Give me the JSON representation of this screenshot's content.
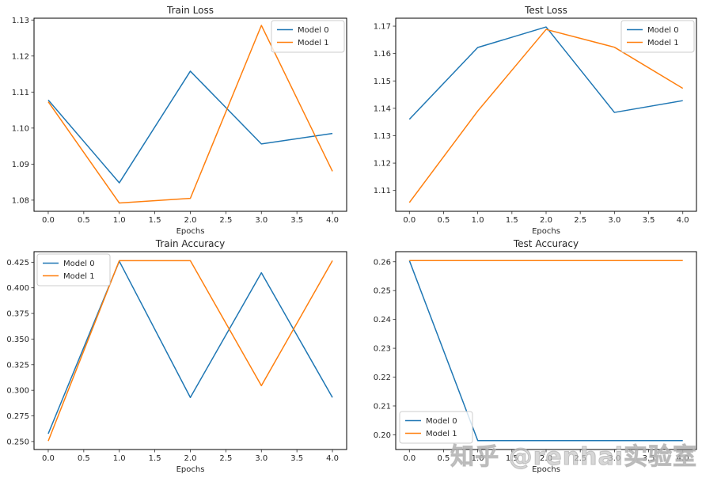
{
  "watermark": {
    "text": "知乎 @renhai实验室"
  },
  "colors": {
    "model0": "#1f77b4",
    "model1": "#ff7f0e",
    "axis": "#262626",
    "spine": "#000000",
    "legend_border": "#cccccc",
    "legend_bg": "#ffffff",
    "background": "#ffffff",
    "watermark": "#c8c8c8"
  },
  "chart_data": [
    {
      "id": "train-loss",
      "type": "line",
      "title": "Train Loss",
      "xlabel": "Epochs",
      "ylabel": "",
      "grid": false,
      "x": [
        0,
        1,
        2,
        3,
        4
      ],
      "series": [
        {
          "name": "Model 0",
          "color": "model0",
          "values": [
            1.1078,
            1.0848,
            1.1158,
            1.0956,
            1.0985
          ]
        },
        {
          "name": "Model 1",
          "color": "model1",
          "values": [
            1.1073,
            1.0792,
            1.0805,
            1.1285,
            1.088
          ]
        }
      ],
      "xlim": [
        -0.2,
        4.2
      ],
      "ylim": [
        1.0769,
        1.1305
      ],
      "xtick_values": [
        0,
        0.5,
        1,
        1.5,
        2,
        2.5,
        3,
        3.5,
        4
      ],
      "xtick_labels": [
        "0.0",
        "0.5",
        "1.0",
        "1.5",
        "2.0",
        "2.5",
        "3.0",
        "3.5",
        "4.0"
      ],
      "ytick_values": [
        1.08,
        1.09,
        1.1,
        1.11,
        1.12,
        1.13
      ],
      "ytick_labels": [
        "1.08",
        "1.09",
        "1.10",
        "1.11",
        "1.12",
        "1.13"
      ],
      "legend_position": "top-right",
      "legend_labels": [
        "Model 0",
        "Model 1"
      ]
    },
    {
      "id": "test-loss",
      "type": "line",
      "title": "Test Loss",
      "xlabel": "Epochs",
      "ylabel": "",
      "grid": false,
      "x": [
        0,
        1,
        2,
        3,
        4
      ],
      "series": [
        {
          "name": "Model 0",
          "color": "model0",
          "values": [
            1.136,
            1.1622,
            1.1697,
            1.1385,
            1.1428
          ]
        },
        {
          "name": "Model 1",
          "color": "model1",
          "values": [
            1.1056,
            1.139,
            1.1688,
            1.1623,
            1.1473
          ]
        }
      ],
      "xlim": [
        -0.2,
        4.2
      ],
      "ylim": [
        1.1024,
        1.1729
      ],
      "xtick_values": [
        0,
        0.5,
        1,
        1.5,
        2,
        2.5,
        3,
        3.5,
        4
      ],
      "xtick_labels": [
        "0.0",
        "0.5",
        "1.0",
        "1.5",
        "2.0",
        "2.5",
        "3.0",
        "3.5",
        "4.0"
      ],
      "ytick_values": [
        1.11,
        1.12,
        1.13,
        1.14,
        1.15,
        1.16,
        1.17
      ],
      "ytick_labels": [
        "1.11",
        "1.12",
        "1.13",
        "1.14",
        "1.15",
        "1.16",
        "1.17"
      ],
      "legend_position": "top-right",
      "legend_labels": [
        "Model 0",
        "Model 1"
      ]
    },
    {
      "id": "train-accuracy",
      "type": "line",
      "title": "Train Accuracy",
      "xlabel": "Epochs",
      "ylabel": "",
      "grid": false,
      "x": [
        0,
        1,
        2,
        3,
        4
      ],
      "series": [
        {
          "name": "Model 0",
          "color": "model0",
          "values": [
            0.2576,
            0.426,
            0.293,
            0.4147,
            0.293
          ]
        },
        {
          "name": "Model 1",
          "color": "model1",
          "values": [
            0.2505,
            0.4265,
            0.4265,
            0.3045,
            0.4265
          ]
        }
      ],
      "xlim": [
        -0.2,
        4.2
      ],
      "ylim": [
        0.2422,
        0.4353
      ],
      "xtick_values": [
        0,
        0.5,
        1,
        1.5,
        2,
        2.5,
        3,
        3.5,
        4
      ],
      "xtick_labels": [
        "0.0",
        "0.5",
        "1.0",
        "1.5",
        "2.0",
        "2.5",
        "3.0",
        "3.5",
        "4.0"
      ],
      "ytick_values": [
        0.25,
        0.275,
        0.3,
        0.325,
        0.35,
        0.375,
        0.4,
        0.425
      ],
      "ytick_labels": [
        "0.250",
        "0.275",
        "0.300",
        "0.325",
        "0.350",
        "0.375",
        "0.400",
        "0.425"
      ],
      "legend_position": "top-left",
      "legend_labels": [
        "Model 0",
        "Model 1"
      ]
    },
    {
      "id": "test-accuracy",
      "type": "line",
      "title": "Test Accuracy",
      "xlabel": "Epochs",
      "ylabel": "",
      "grid": false,
      "x": [
        0,
        1,
        2,
        3,
        4
      ],
      "series": [
        {
          "name": "Model 0",
          "color": "model0",
          "values": [
            0.2604,
            0.198,
            0.198,
            0.198,
            0.198
          ]
        },
        {
          "name": "Model 1",
          "color": "model1",
          "values": [
            0.2604,
            0.2604,
            0.2604,
            0.2604,
            0.2604
          ]
        }
      ],
      "xlim": [
        -0.2,
        4.2
      ],
      "ylim": [
        0.1949,
        0.2635
      ],
      "xtick_values": [
        0,
        0.5,
        1,
        1.5,
        2,
        2.5,
        3,
        3.5,
        4
      ],
      "xtick_labels": [
        "0.0",
        "0.5",
        "1.0",
        "1.5",
        "2.0",
        "2.5",
        "3.0",
        "3.5",
        "4.0"
      ],
      "ytick_values": [
        0.2,
        0.21,
        0.22,
        0.23,
        0.24,
        0.25,
        0.26
      ],
      "ytick_labels": [
        "0.20",
        "0.21",
        "0.22",
        "0.23",
        "0.24",
        "0.25",
        "0.26"
      ],
      "legend_position": "bottom-left",
      "legend_labels": [
        "Model 0",
        "Model 1"
      ]
    }
  ]
}
